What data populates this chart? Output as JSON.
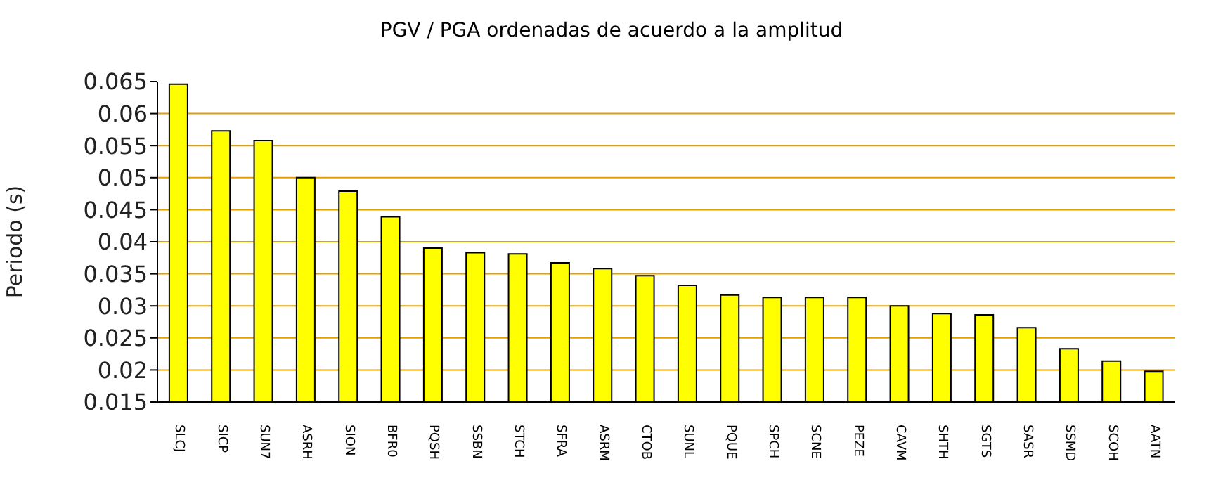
{
  "chart_data": {
    "type": "bar",
    "title": "PGV / PGA ordenadas de acuerdo a la amplitud",
    "ylabel": "Periodo (s)",
    "categories": [
      "SLCJ",
      "SICP",
      "SUN7",
      "ASRH",
      "SION",
      "BFR0",
      "PQSH",
      "SSBN",
      "STCH",
      "SFRA",
      "ASRM",
      "CTOB",
      "SUNL",
      "PQUE",
      "SPCH",
      "SCNE",
      "PEZE",
      "CAVM",
      "SHTH",
      "SGTS",
      "SASR",
      "SSMD",
      "SCOH",
      "AATN"
    ],
    "values": [
      0.0646,
      0.0573,
      0.0558,
      0.05,
      0.0479,
      0.0439,
      0.039,
      0.0383,
      0.0381,
      0.0367,
      0.0358,
      0.0347,
      0.0332,
      0.0317,
      0.0313,
      0.0313,
      0.0313,
      0.03,
      0.0288,
      0.0286,
      0.0266,
      0.0233,
      0.0214,
      0.0198
    ],
    "color": "#ffff00",
    "ylim": [
      0.015,
      0.065
    ],
    "yticks": [
      0.015,
      0.02,
      0.025,
      0.03,
      0.035,
      0.04,
      0.045,
      0.05,
      0.055,
      0.06,
      0.065
    ],
    "grid": "y",
    "legend": false
  }
}
